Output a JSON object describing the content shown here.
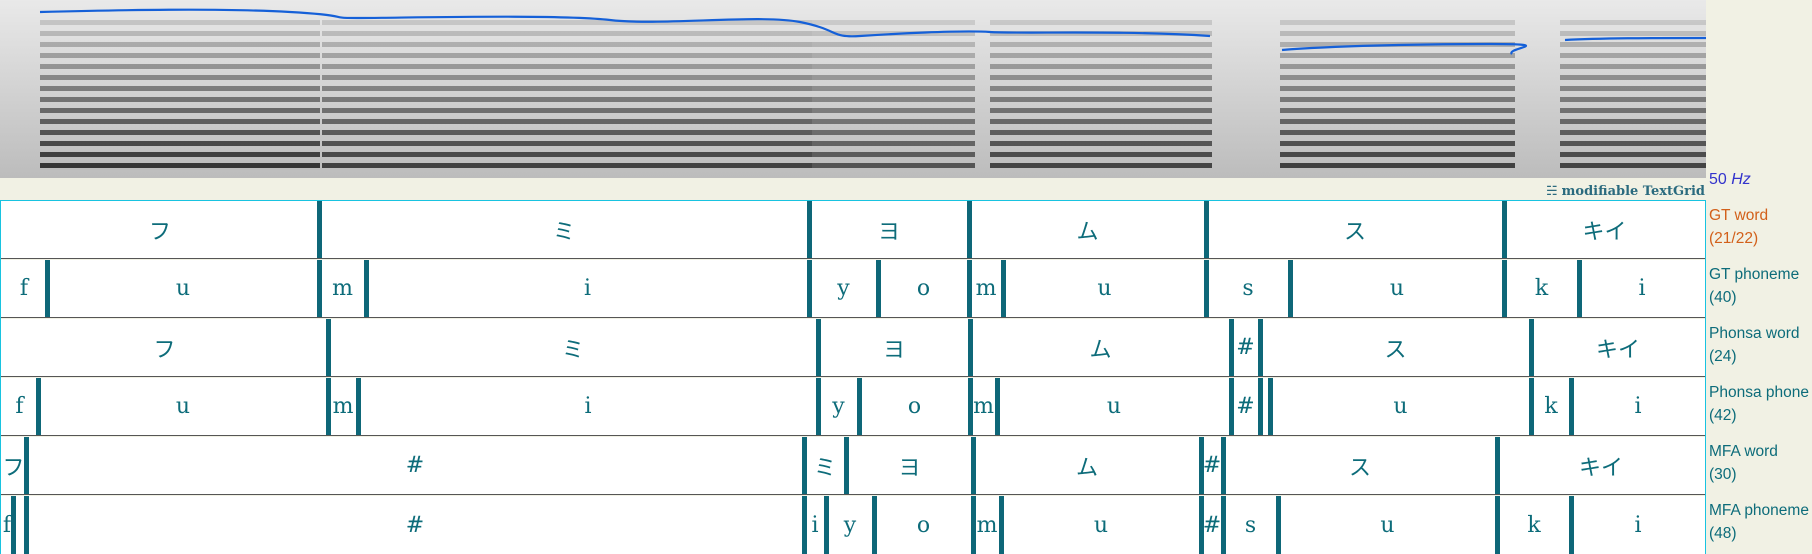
{
  "spectrogram": {
    "pitch_color": "#1560d8",
    "pitch_floor_label": "50",
    "pitch_unit": "Hz"
  },
  "textgrid_link": {
    "icon": "list-icon",
    "label": "modifiable TextGrid"
  },
  "tiers": [
    {
      "name": "GT word",
      "count": "(21/22)",
      "active": true,
      "intervals": [
        {
          "start": 0,
          "end": 318,
          "label": "フ"
        },
        {
          "start": 318,
          "end": 808,
          "label": "ミ"
        },
        {
          "start": 808,
          "end": 968,
          "label": "ヨ"
        },
        {
          "start": 968,
          "end": 1205,
          "label": "ム"
        },
        {
          "start": 1205,
          "end": 1503,
          "label": "ス"
        },
        {
          "start": 1503,
          "end": 1704,
          "label": "キイ"
        }
      ]
    },
    {
      "name": "GT phoneme",
      "count": "(40)",
      "active": false,
      "intervals": [
        {
          "start": 0,
          "end": 46,
          "label": "f"
        },
        {
          "start": 46,
          "end": 318,
          "label": "u"
        },
        {
          "start": 318,
          "end": 365,
          "label": "m"
        },
        {
          "start": 365,
          "end": 808,
          "label": "i"
        },
        {
          "start": 808,
          "end": 877,
          "label": "y"
        },
        {
          "start": 877,
          "end": 968,
          "label": "o"
        },
        {
          "start": 968,
          "end": 1002,
          "label": "m"
        },
        {
          "start": 1002,
          "end": 1205,
          "label": "u"
        },
        {
          "start": 1205,
          "end": 1289,
          "label": "s"
        },
        {
          "start": 1289,
          "end": 1503,
          "label": "u"
        },
        {
          "start": 1503,
          "end": 1578,
          "label": "k"
        },
        {
          "start": 1578,
          "end": 1704,
          "label": "i"
        }
      ]
    },
    {
      "name": "Phonsa word",
      "count": "(24)",
      "active": false,
      "intervals": [
        {
          "start": 0,
          "end": 327,
          "label": "フ"
        },
        {
          "start": 327,
          "end": 817,
          "label": "ミ"
        },
        {
          "start": 817,
          "end": 969,
          "label": "ヨ"
        },
        {
          "start": 969,
          "end": 1230,
          "label": "ム"
        },
        {
          "start": 1230,
          "end": 1259,
          "label": "#"
        },
        {
          "start": 1259,
          "end": 1530,
          "label": "ス"
        },
        {
          "start": 1530,
          "end": 1704,
          "label": "キイ"
        }
      ]
    },
    {
      "name": "Phonsa phone",
      "count": "(42)",
      "active": false,
      "intervals": [
        {
          "start": 0,
          "end": 37,
          "label": "f"
        },
        {
          "start": 37,
          "end": 327,
          "label": "u"
        },
        {
          "start": 327,
          "end": 357,
          "label": "m"
        },
        {
          "start": 357,
          "end": 817,
          "label": "i"
        },
        {
          "start": 817,
          "end": 858,
          "label": "y"
        },
        {
          "start": 858,
          "end": 969,
          "label": "o"
        },
        {
          "start": 969,
          "end": 996,
          "label": "m"
        },
        {
          "start": 996,
          "end": 1230,
          "label": "u"
        },
        {
          "start": 1230,
          "end": 1259,
          "label": "#"
        },
        {
          "start": 1259,
          "end": 1269,
          "label": ""
        },
        {
          "start": 1269,
          "end": 1530,
          "label": "u"
        },
        {
          "start": 1530,
          "end": 1570,
          "label": "k"
        },
        {
          "start": 1570,
          "end": 1704,
          "label": "i"
        }
      ]
    },
    {
      "name": "MFA word",
      "count": "(30)",
      "active": false,
      "intervals": [
        {
          "start": 0,
          "end": 25,
          "label": "フ"
        },
        {
          "start": 25,
          "end": 803,
          "label": "#"
        },
        {
          "start": 803,
          "end": 845,
          "label": "ミ"
        },
        {
          "start": 845,
          "end": 972,
          "label": "ヨ"
        },
        {
          "start": 972,
          "end": 1200,
          "label": "ム"
        },
        {
          "start": 1200,
          "end": 1222,
          "label": "#"
        },
        {
          "start": 1222,
          "end": 1496,
          "label": "ス"
        },
        {
          "start": 1496,
          "end": 1704,
          "label": "キイ"
        }
      ]
    },
    {
      "name": "MFA phoneme",
      "count": "(48)",
      "active": false,
      "intervals": [
        {
          "start": 0,
          "end": 12,
          "label": "f"
        },
        {
          "start": 12,
          "end": 25,
          "label": ""
        },
        {
          "start": 25,
          "end": 803,
          "label": "#"
        },
        {
          "start": 803,
          "end": 825,
          "label": "i"
        },
        {
          "start": 825,
          "end": 873,
          "label": "y"
        },
        {
          "start": 873,
          "end": 972,
          "label": "o"
        },
        {
          "start": 972,
          "end": 1000,
          "label": "m"
        },
        {
          "start": 1000,
          "end": 1200,
          "label": "u"
        },
        {
          "start": 1200,
          "end": 1222,
          "label": "#"
        },
        {
          "start": 1222,
          "end": 1277,
          "label": "s"
        },
        {
          "start": 1277,
          "end": 1496,
          "label": "u"
        },
        {
          "start": 1496,
          "end": 1570,
          "label": "k"
        },
        {
          "start": 1570,
          "end": 1704,
          "label": "i"
        }
      ]
    }
  ]
}
